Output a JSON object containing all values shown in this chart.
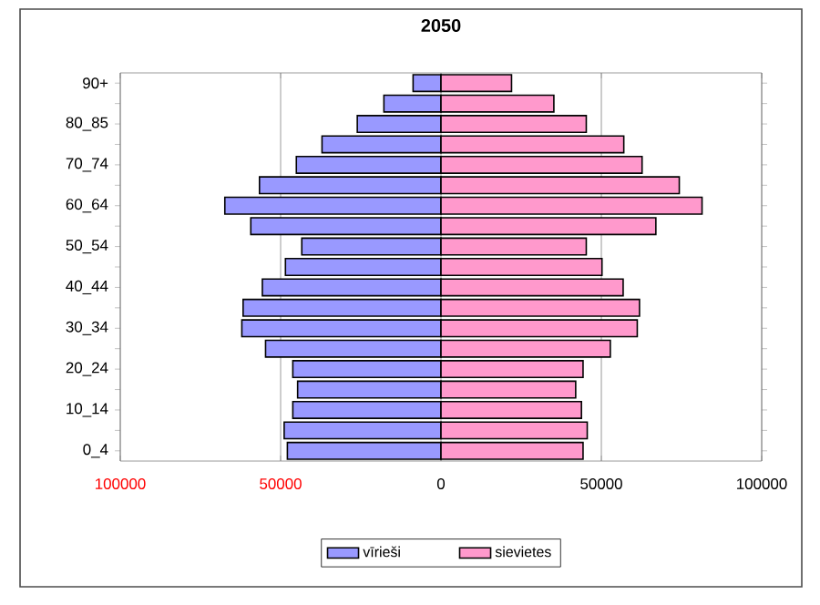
{
  "chart_data": {
    "type": "bar",
    "orientation": "horizontal",
    "title": "2050",
    "categories": [
      "90+",
      null,
      "80_85",
      null,
      "70_74",
      null,
      "60_64",
      null,
      "50_54",
      null,
      "40_44",
      null,
      "30_34",
      null,
      "20_24",
      null,
      "10_14",
      null,
      "0_4"
    ],
    "series": [
      {
        "name": "vīrieši",
        "color": "#9999ff",
        "values": [
          -8700,
          -17800,
          -26100,
          -37100,
          -45100,
          -56600,
          -67400,
          -59300,
          -43400,
          -48500,
          -55700,
          -61700,
          -62100,
          -54700,
          -46200,
          -44700,
          -46200,
          -48900,
          -47900
        ]
      },
      {
        "name": "sievietes",
        "color": "#ff99cc",
        "values": [
          22000,
          35200,
          45300,
          57000,
          62700,
          74300,
          81400,
          67000,
          45300,
          50200,
          56800,
          61900,
          61200,
          52800,
          44300,
          42000,
          43800,
          45600,
          44300
        ]
      }
    ],
    "xlim": [
      -100000,
      100000
    ],
    "xticks": [
      {
        "value": -100000,
        "label": "100000"
      },
      {
        "value": -50000,
        "label": "50000"
      },
      0,
      50000,
      100000
    ],
    "stacked": true,
    "grid": "x",
    "legend": "bottom"
  }
}
